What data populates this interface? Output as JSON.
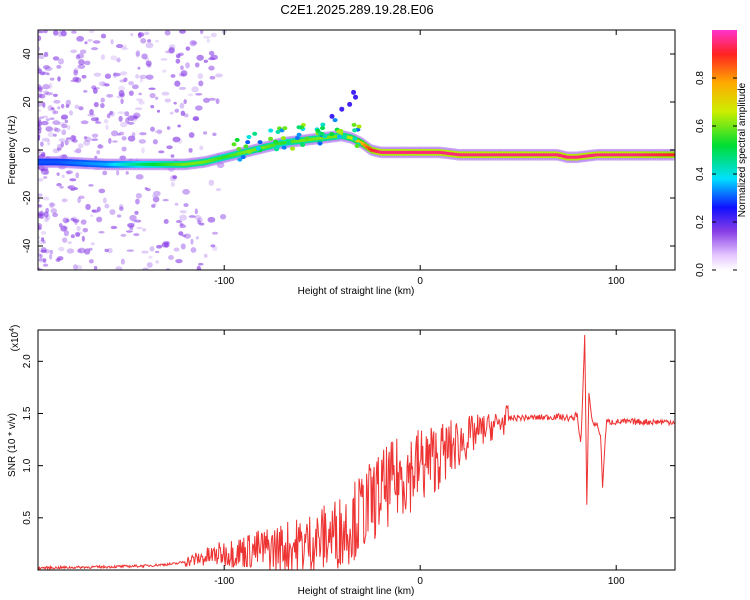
{
  "title": "C2E1.2025.289.19.28.E06",
  "chart_data": [
    {
      "type": "heatmap",
      "xlabel": "Height of straight line (km)",
      "ylabel": "Frequency (Hz)",
      "xlim": [
        -195,
        130
      ],
      "ylim": [
        -50,
        50
      ],
      "xticks": [
        -100,
        0,
        100
      ],
      "yticks": [
        40,
        20,
        0,
        -20,
        -40
      ],
      "colorbar": {
        "label": "Normalized spectral amplitude",
        "range": [
          0,
          1
        ],
        "ticks": [
          0.0,
          0.2,
          0.4,
          0.6,
          0.8
        ]
      },
      "ridge": {
        "x": [
          -185,
          -160,
          -140,
          -120,
          -110,
          -100,
          -90,
          -80,
          -70,
          -60,
          -50,
          -40,
          -35,
          -30,
          -25,
          -20,
          -10,
          0,
          10,
          20,
          40,
          60,
          70,
          75,
          80,
          90,
          100,
          110,
          130
        ],
        "freq": [
          -5,
          -6,
          -6,
          -6,
          -5,
          -3,
          -1,
          1,
          3,
          4,
          5,
          6,
          5,
          3,
          0,
          -1,
          -1,
          -1,
          -1,
          -2,
          -2,
          -2,
          -2,
          -3,
          -3,
          -2,
          -2,
          -2,
          -2
        ],
        "amplitude": [
          0.3,
          0.35,
          0.5,
          0.6,
          0.6,
          0.55,
          0.6,
          0.6,
          0.55,
          0.6,
          0.6,
          0.6,
          0.65,
          0.75,
          0.9,
          0.95,
          0.95,
          0.95,
          0.95,
          0.95,
          0.95,
          0.95,
          0.95,
          0.95,
          0.95,
          0.95,
          0.95,
          0.95,
          0.9
        ]
      }
    },
    {
      "type": "line",
      "xlabel": "Height of straight line (km)",
      "ylabel": "SNR (10 * v/v)",
      "y_multiplier": "(x10^4)",
      "y_multiplier_base": "(x10",
      "y_multiplier_exp": "4",
      "y_multiplier_close": ")",
      "xlim": [
        -195,
        130
      ],
      "ylim": [
        0,
        2.3
      ],
      "xticks": [
        -100,
        0,
        100
      ],
      "yticks": [
        0.5,
        1.0,
        1.5,
        2.0
      ],
      "color": "#ee3333",
      "series": [
        {
          "name": "SNR",
          "x": [
            -195,
            -160,
            -140,
            -125,
            -110,
            -100,
            -90,
            -80,
            -70,
            -60,
            -50,
            -40,
            -35,
            -30,
            -20,
            -10,
            0,
            10,
            20,
            30,
            40,
            45,
            50,
            60,
            70,
            78,
            80,
            82,
            84,
            85,
            86,
            88,
            90,
            92,
            93,
            95,
            100,
            110,
            120,
            130
          ],
          "y": [
            0.02,
            0.03,
            0.04,
            0.06,
            0.12,
            0.16,
            0.18,
            0.2,
            0.22,
            0.24,
            0.3,
            0.38,
            0.45,
            0.55,
            0.75,
            0.9,
            1.0,
            1.1,
            1.22,
            1.33,
            1.4,
            1.45,
            1.46,
            1.46,
            1.47,
            1.45,
            1.5,
            1.2,
            2.25,
            0.6,
            1.7,
            1.4,
            1.4,
            1.3,
            0.8,
            1.42,
            1.42,
            1.42,
            1.42,
            1.42
          ]
        }
      ]
    }
  ],
  "colors": {
    "line": "#ee3333",
    "scatter": "#8a3fe6"
  }
}
